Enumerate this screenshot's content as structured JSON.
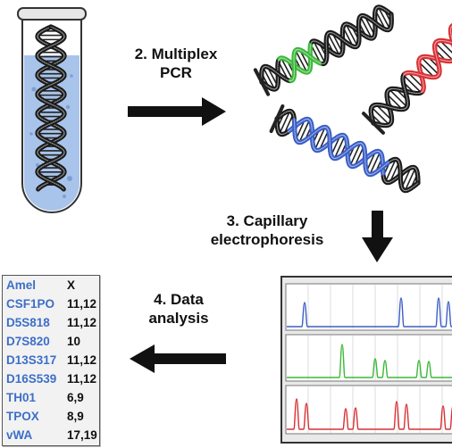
{
  "steps": {
    "pcr": [
      "2. Multiplex",
      "PCR"
    ],
    "electrophoresis": [
      "3. Capillary",
      "electrophoresis"
    ],
    "analysis": [
      "4. Data",
      "analysis"
    ]
  },
  "profile": [
    {
      "locus": "Amel",
      "value": "X"
    },
    {
      "locus": "CSF1PO",
      "value": "11,12"
    },
    {
      "locus": "D5S818",
      "value": "11,12"
    },
    {
      "locus": "D7S820",
      "value": "10"
    },
    {
      "locus": "D13S317",
      "value": "11,12"
    },
    {
      "locus": "D16S539",
      "value": "11,12"
    },
    {
      "locus": "TH01",
      "value": "6,9"
    },
    {
      "locus": "TPOX",
      "value": "8,9"
    },
    {
      "locus": "vWA",
      "value": "17,19"
    }
  ],
  "colors": {
    "blue": "#3b5fc7",
    "green": "#3cb83a",
    "red": "#d93035",
    "tube_liquid": "#a9c4ea",
    "arrow": "#111111",
    "locus_text": "#3d6fc7"
  }
}
